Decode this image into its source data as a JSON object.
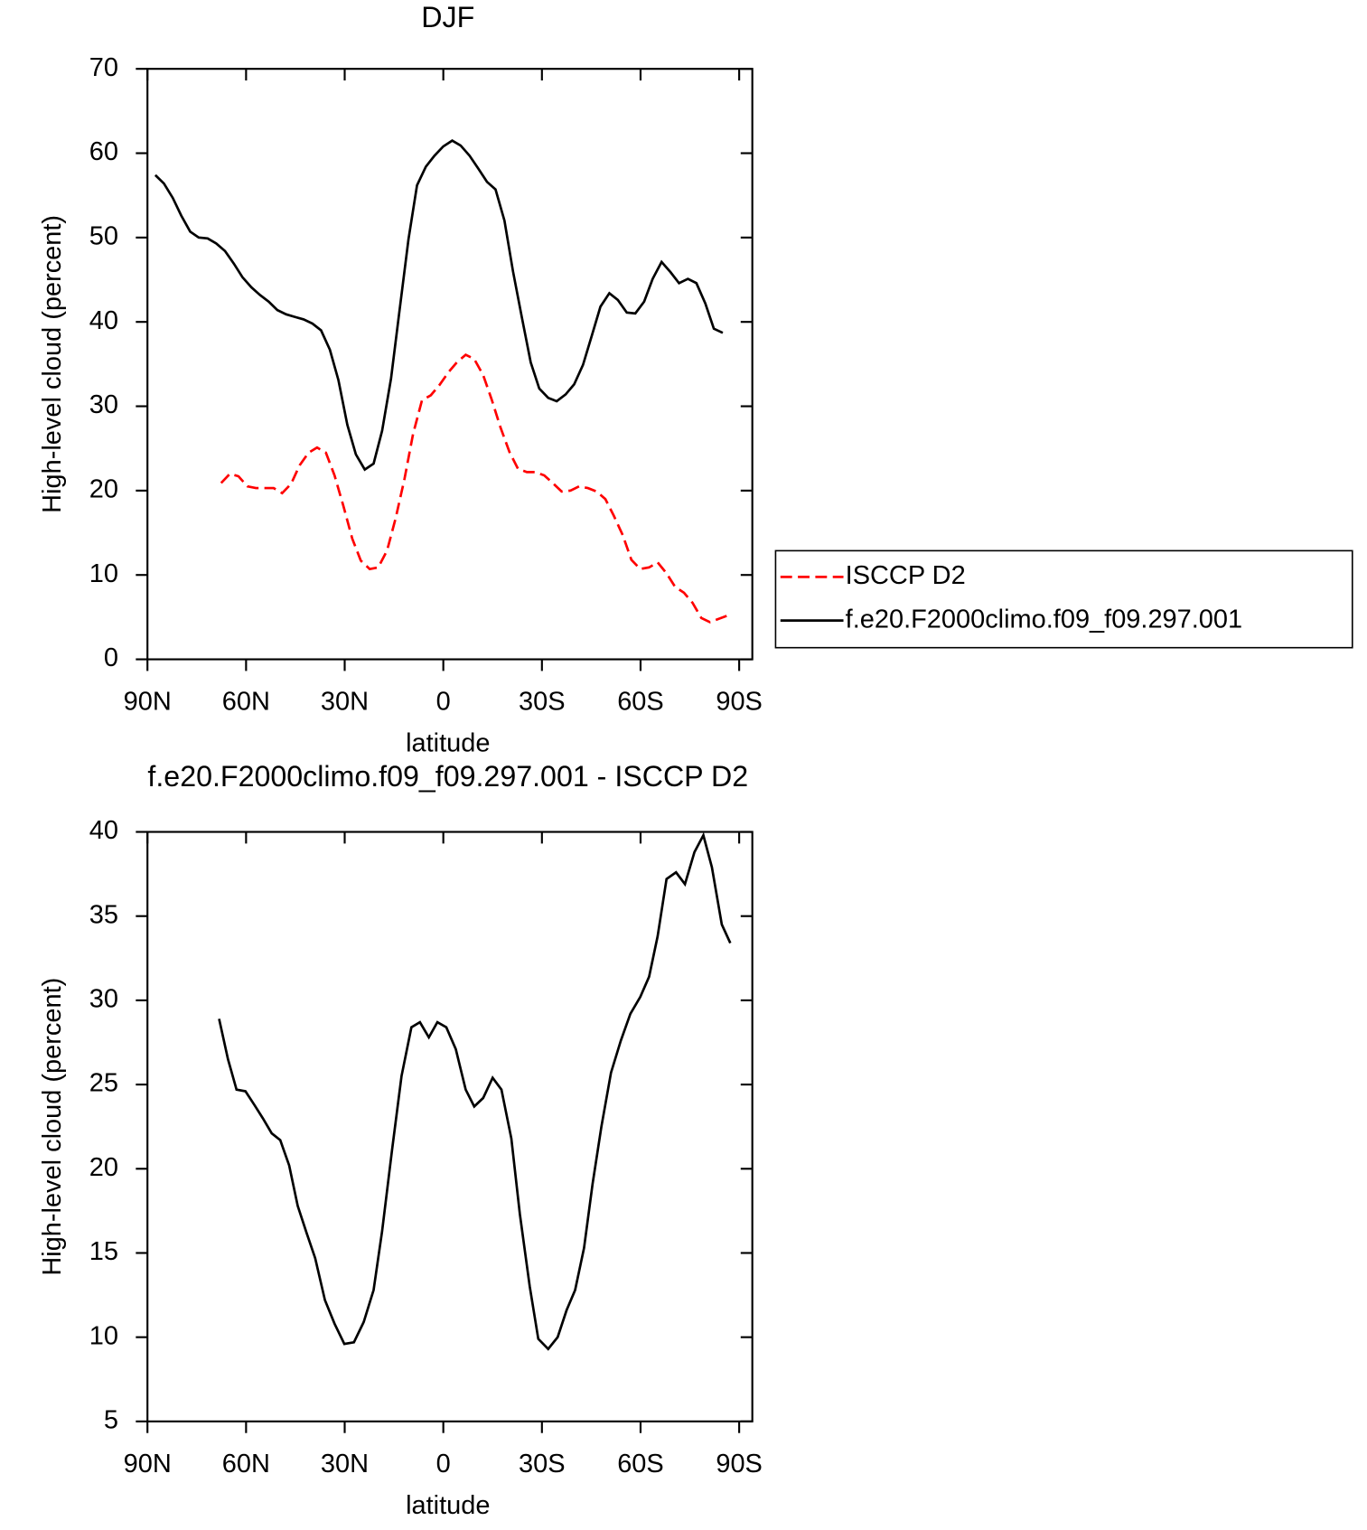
{
  "chart_data": [
    {
      "type": "line",
      "title": "DJF",
      "xlabel": "latitude",
      "ylabel": "High-level cloud (percent)",
      "xlim": [
        90,
        -94
      ],
      "xticks": [
        {
          "value": 90,
          "label": "90N"
        },
        {
          "value": 60,
          "label": "60N"
        },
        {
          "value": 30,
          "label": "30N"
        },
        0,
        {
          "value": -30,
          "label": "30S"
        },
        {
          "value": -60,
          "label": "60S"
        },
        {
          "value": -90,
          "label": "90S"
        }
      ],
      "ylim": [
        0,
        70
      ],
      "yticks": [
        0,
        10,
        20,
        30,
        40,
        50,
        60,
        70
      ],
      "legend": "right",
      "series": [
        {
          "name": "ISCCP D2",
          "color": "#ff0000",
          "dashed": true,
          "x": [
            67.6,
            64.9,
            62.3,
            59.6,
            57.0,
            54.3,
            51.6,
            49.0,
            46.3,
            43.7,
            41.0,
            38.4,
            35.7,
            33.1,
            30.4,
            27.7,
            25.1,
            22.4,
            19.8,
            17.1,
            14.5,
            11.8,
            9.2,
            6.5,
            3.8,
            1.2,
            -1.5,
            -4.1,
            -6.8,
            -9.4,
            -12.1,
            -14.7,
            -17.4,
            -20.1,
            -22.7,
            -25.4,
            -28.0,
            -30.7,
            -33.3,
            -36.0,
            -38.7,
            -41.3,
            -44.0,
            -46.6,
            -49.3,
            -51.9,
            -54.6,
            -57.2,
            -59.9,
            -62.6,
            -65.2,
            -67.9,
            -70.5,
            -73.2,
            -75.8,
            -78.5,
            -81.1,
            -83.8,
            -86.5
          ],
          "values": [
            20.9,
            22.0,
            21.7,
            20.5,
            20.3,
            20.3,
            20.3,
            19.7,
            20.8,
            23.0,
            24.5,
            25.1,
            24.5,
            21.8,
            18.2,
            14.3,
            11.7,
            10.7,
            10.9,
            12.9,
            16.7,
            21.4,
            26.7,
            30.7,
            31.3,
            32.5,
            34.0,
            35.2,
            36.1,
            35.6,
            33.7,
            30.8,
            27.5,
            24.6,
            22.6,
            22.2,
            22.2,
            21.8,
            20.9,
            19.9,
            20.0,
            20.5,
            20.3,
            19.9,
            19.0,
            17.0,
            14.7,
            11.8,
            10.7,
            10.9,
            11.5,
            10.2,
            8.6,
            7.9,
            6.7,
            4.9,
            4.4,
            4.8,
            5.2
          ]
        },
        {
          "name": "f.e20.F2000climo.f09_f09.297.001",
          "color": "#000000",
          "dashed": false,
          "x": [
            87.6,
            85.0,
            82.3,
            79.7,
            77.0,
            74.4,
            71.7,
            69.1,
            66.4,
            63.7,
            61.1,
            58.4,
            55.8,
            53.1,
            50.5,
            47.8,
            45.2,
            42.5,
            39.8,
            37.2,
            34.5,
            31.9,
            29.2,
            26.6,
            23.9,
            21.2,
            18.6,
            15.9,
            13.3,
            10.6,
            8.0,
            5.3,
            2.7,
            0.0,
            -2.7,
            -5.3,
            -8.0,
            -10.6,
            -13.3,
            -15.9,
            -18.6,
            -21.2,
            -23.9,
            -26.6,
            -29.2,
            -31.9,
            -34.5,
            -37.2,
            -39.8,
            -42.5,
            -45.2,
            -47.8,
            -50.5,
            -53.1,
            -55.8,
            -58.4,
            -61.1,
            -63.7,
            -66.4,
            -69.1,
            -71.7,
            -74.4,
            -77.0,
            -79.7,
            -82.3,
            -85.0
          ],
          "values": [
            57.4,
            56.4,
            54.7,
            52.6,
            50.7,
            50.0,
            49.9,
            49.3,
            48.4,
            46.9,
            45.3,
            44.1,
            43.2,
            42.4,
            41.4,
            40.9,
            40.6,
            40.3,
            39.8,
            39.0,
            36.7,
            33.1,
            27.8,
            24.3,
            22.5,
            23.2,
            27.1,
            33.3,
            41.4,
            49.8,
            56.2,
            58.4,
            59.7,
            60.8,
            61.5,
            60.9,
            59.7,
            58.2,
            56.6,
            55.7,
            52.0,
            46.0,
            40.5,
            35.2,
            32.1,
            31.0,
            30.6,
            31.4,
            32.6,
            34.9,
            38.4,
            41.8,
            43.4,
            42.6,
            41.1,
            41.0,
            42.4,
            45.1,
            47.1,
            45.9,
            44.6,
            45.1,
            44.6,
            42.2,
            39.2,
            38.7
          ]
        }
      ]
    },
    {
      "type": "line",
      "title": "f.e20.F2000climo.f09_f09.297.001 - ISCCP D2",
      "xlabel": "latitude",
      "ylabel": "High-level cloud (percent)",
      "xlim": [
        90,
        -94
      ],
      "xticks": [
        {
          "value": 90,
          "label": "90N"
        },
        {
          "value": 60,
          "label": "60N"
        },
        {
          "value": 30,
          "label": "30N"
        },
        0,
        {
          "value": -30,
          "label": "30S"
        },
        {
          "value": -60,
          "label": "60S"
        },
        {
          "value": -90,
          "label": "90S"
        }
      ],
      "ylim": [
        5,
        40
      ],
      "yticks": [
        5,
        10,
        15,
        20,
        25,
        30,
        35,
        40
      ],
      "series": [
        {
          "color": "#000000",
          "dashed": false,
          "x": [
            68.2,
            65.5,
            62.9,
            60.2,
            57.5,
            54.9,
            52.2,
            49.6,
            46.9,
            44.3,
            41.6,
            39.0,
            36.0,
            33.1,
            30.1,
            27.2,
            24.2,
            21.2,
            18.6,
            15.6,
            12.7,
            9.7,
            7.1,
            4.4,
            1.8,
            -0.9,
            -3.8,
            -6.8,
            -9.4,
            -12.1,
            -15.0,
            -17.7,
            -20.7,
            -23.3,
            -26.3,
            -28.9,
            -31.9,
            -34.8,
            -37.5,
            -40.1,
            -42.8,
            -45.4,
            -48.1,
            -51.0,
            -54.0,
            -56.9,
            -59.9,
            -62.6,
            -65.2,
            -67.9,
            -70.8,
            -73.5,
            -76.4,
            -79.1,
            -81.7,
            -84.7,
            -87.3
          ],
          "values": [
            28.9,
            26.5,
            24.7,
            24.6,
            23.8,
            23.0,
            22.1,
            21.7,
            20.2,
            17.8,
            16.2,
            14.7,
            12.2,
            10.8,
            9.6,
            9.7,
            10.9,
            12.8,
            16.3,
            21.1,
            25.5,
            28.4,
            28.7,
            27.8,
            28.7,
            28.4,
            27.1,
            24.7,
            23.7,
            24.2,
            25.4,
            24.7,
            21.8,
            17.3,
            13.0,
            9.9,
            9.3,
            10.0,
            11.6,
            12.8,
            15.3,
            19.1,
            22.5,
            25.7,
            27.6,
            29.2,
            30.2,
            31.4,
            33.8,
            37.2,
            37.6,
            36.9,
            38.8,
            39.8,
            37.9,
            34.5,
            33.4
          ]
        }
      ]
    }
  ]
}
